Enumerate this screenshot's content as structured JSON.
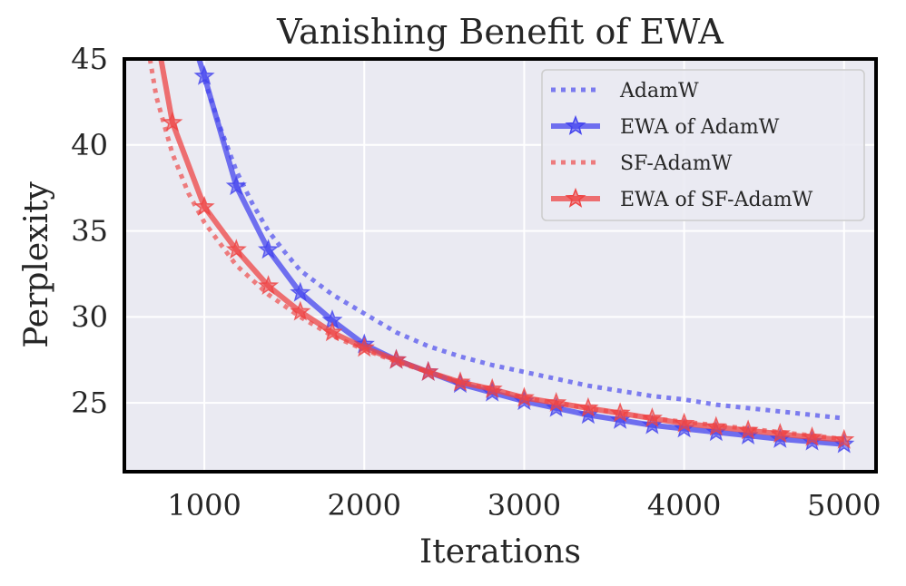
{
  "chart_data": {
    "type": "line",
    "title": "Vanishing Benefit of EWA",
    "xlabel": "Iterations",
    "ylabel": "Perplexity",
    "xlim": [
      500,
      5200
    ],
    "ylim": [
      21,
      45
    ],
    "xticks": [
      1000,
      2000,
      3000,
      4000,
      5000
    ],
    "yticks": [
      25,
      30,
      35,
      40,
      45
    ],
    "grid": true,
    "legend_position": "top-right",
    "series": [
      {
        "name": "AdamW",
        "color": "#5555ee",
        "style": "dotted",
        "marker": "none",
        "x": [
          1000,
          1100,
          1200,
          1300,
          1400,
          1500,
          1600,
          1800,
          2000,
          2200,
          2400,
          2600,
          2800,
          3000,
          3200,
          3400,
          3600,
          3800,
          4000,
          4200,
          4400,
          4600,
          4800,
          5000
        ],
        "y": [
          43.8,
          41.0,
          38.5,
          36.6,
          35.0,
          33.8,
          32.7,
          31.3,
          30.2,
          29.1,
          28.3,
          27.7,
          27.2,
          26.8,
          26.4,
          26.0,
          25.7,
          25.4,
          25.2,
          24.9,
          24.7,
          24.5,
          24.3,
          24.1
        ]
      },
      {
        "name": "EWA of AdamW",
        "color": "#4444ee",
        "style": "solid",
        "marker": "star",
        "x": [
          900,
          1000,
          1200,
          1400,
          1600,
          1800,
          2000,
          2200,
          2400,
          2600,
          2800,
          3000,
          3200,
          3400,
          3600,
          3800,
          4000,
          4200,
          4400,
          4600,
          4800,
          5000
        ],
        "y": [
          47,
          44.0,
          37.6,
          33.9,
          31.4,
          29.8,
          28.4,
          27.5,
          26.8,
          26.1,
          25.6,
          25.1,
          24.7,
          24.3,
          24.0,
          23.7,
          23.5,
          23.3,
          23.1,
          22.9,
          22.75,
          22.6
        ]
      },
      {
        "name": "SF-AdamW",
        "color": "#ee5555",
        "style": "dotted",
        "marker": "none",
        "x": [
          660,
          700,
          800,
          900,
          1000,
          1200,
          1400,
          1600,
          1800,
          2000,
          2200,
          2400,
          2600,
          2800,
          3000,
          3200,
          3400,
          3600,
          3800,
          4000,
          4200,
          4400,
          4600,
          4800,
          5000
        ],
        "y": [
          45.0,
          42.8,
          39.5,
          37.2,
          35.5,
          33.0,
          31.3,
          30.0,
          28.9,
          28.1,
          27.4,
          26.8,
          26.2,
          25.8,
          25.3,
          25.0,
          24.7,
          24.4,
          24.1,
          23.9,
          23.7,
          23.5,
          23.3,
          23.1,
          22.9
        ]
      },
      {
        "name": "EWA of SF-AdamW",
        "color": "#ee4444",
        "style": "solid",
        "marker": "star",
        "x": [
          700,
          800,
          1000,
          1200,
          1400,
          1600,
          1800,
          2000,
          2200,
          2400,
          2600,
          2800,
          3000,
          3200,
          3400,
          3600,
          3800,
          4000,
          4200,
          4400,
          4600,
          4800,
          5000
        ],
        "y": [
          46.5,
          41.3,
          36.4,
          33.9,
          31.8,
          30.3,
          29.1,
          28.2,
          27.5,
          26.8,
          26.2,
          25.8,
          25.3,
          25.0,
          24.7,
          24.4,
          24.1,
          23.8,
          23.6,
          23.4,
          23.2,
          23.0,
          22.85
        ]
      }
    ]
  }
}
